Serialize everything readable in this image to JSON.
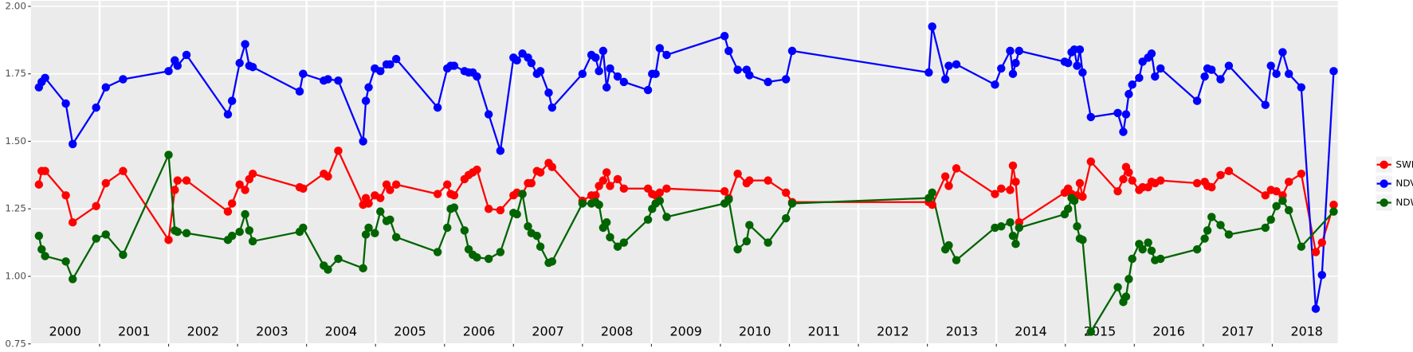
{
  "chart_data": {
    "type": "line",
    "x": [
      2000.12,
      2000.16,
      2000.21,
      2000.51,
      2000.61,
      2000.95,
      2001.09,
      2001.34,
      2002.0,
      2002.09,
      2002.13,
      2002.26,
      2002.86,
      2002.92,
      2003.03,
      2003.11,
      2003.17,
      2003.22,
      2003.9,
      2003.95,
      2004.25,
      2004.31,
      2004.46,
      2004.82,
      2004.86,
      2004.9,
      2004.99,
      2005.07,
      2005.16,
      2005.21,
      2005.3,
      2005.9,
      2006.04,
      2006.09,
      2006.14,
      2006.29,
      2006.35,
      2006.41,
      2006.47,
      2006.64,
      2006.81,
      2007.0,
      2007.05,
      2007.13,
      2007.21,
      2007.26,
      2007.34,
      2007.39,
      2007.51,
      2007.56,
      2008.0,
      2008.13,
      2008.19,
      2008.24,
      2008.3,
      2008.35,
      2008.4,
      2008.51,
      2008.6,
      2008.95,
      2009.01,
      2009.06,
      2009.12,
      2009.22,
      2010.06,
      2010.12,
      2010.25,
      2010.38,
      2010.42,
      2010.69,
      2010.95,
      2011.04,
      2013.02,
      2013.07,
      2013.26,
      2013.31,
      2013.42,
      2013.98,
      2014.07,
      2014.2,
      2014.24,
      2014.28,
      2014.33,
      2014.99,
      2015.04,
      2015.09,
      2015.13,
      2015.17,
      2015.21,
      2015.25,
      2015.37,
      2015.76,
      2015.84,
      2015.88,
      2015.92,
      2015.97,
      2016.07,
      2016.12,
      2016.2,
      2016.25,
      2016.3,
      2016.38,
      2016.91,
      2017.02,
      2017.06,
      2017.12,
      2017.25,
      2017.37,
      2017.9,
      2017.98,
      2018.06,
      2018.15,
      2018.24,
      2018.42,
      2018.63,
      2018.72,
      2018.89
    ],
    "series": [
      {
        "name": "SWIR",
        "color": "#ff0000",
        "values": [
          1.34,
          1.39,
          1.39,
          1.3,
          1.2,
          1.26,
          1.345,
          1.39,
          1.135,
          1.32,
          1.355,
          1.355,
          1.24,
          1.27,
          1.34,
          1.32,
          1.36,
          1.38,
          1.33,
          1.325,
          1.38,
          1.37,
          1.465,
          1.265,
          1.29,
          1.27,
          1.3,
          1.29,
          1.34,
          1.32,
          1.34,
          1.305,
          1.34,
          1.305,
          1.3,
          1.36,
          1.375,
          1.385,
          1.395,
          1.25,
          1.245,
          1.3,
          1.31,
          1.305,
          1.345,
          1.345,
          1.39,
          1.385,
          1.42,
          1.405,
          1.28,
          1.3,
          1.3,
          1.335,
          1.355,
          1.385,
          1.335,
          1.36,
          1.325,
          1.325,
          1.305,
          1.3,
          1.31,
          1.325,
          1.315,
          1.29,
          1.38,
          1.345,
          1.355,
          1.355,
          1.31,
          1.275,
          1.275,
          1.265,
          1.37,
          1.335,
          1.4,
          1.305,
          1.325,
          1.32,
          1.41,
          1.35,
          1.2,
          1.31,
          1.325,
          1.305,
          1.285,
          1.3,
          1.345,
          1.295,
          1.425,
          1.315,
          1.36,
          1.405,
          1.385,
          1.355,
          1.32,
          1.33,
          1.33,
          1.35,
          1.345,
          1.355,
          1.345,
          1.35,
          1.335,
          1.33,
          1.375,
          1.39,
          1.3,
          1.32,
          1.315,
          1.3,
          1.35,
          1.38,
          1.09,
          1.125,
          1.265
        ]
      },
      {
        "name": "NDVI",
        "color": "#0000ff",
        "values": [
          1.7,
          1.72,
          1.735,
          1.64,
          1.49,
          1.625,
          1.7,
          1.73,
          1.76,
          1.8,
          1.78,
          1.82,
          1.6,
          1.65,
          1.79,
          1.86,
          1.78,
          1.775,
          1.685,
          1.75,
          1.725,
          1.73,
          1.725,
          1.5,
          1.65,
          1.7,
          1.77,
          1.76,
          1.785,
          1.785,
          1.805,
          1.625,
          1.77,
          1.78,
          1.78,
          1.76,
          1.755,
          1.755,
          1.74,
          1.6,
          1.465,
          1.81,
          1.8,
          1.825,
          1.81,
          1.79,
          1.75,
          1.76,
          1.68,
          1.625,
          1.75,
          1.82,
          1.81,
          1.76,
          1.835,
          1.7,
          1.77,
          1.74,
          1.72,
          1.69,
          1.75,
          1.75,
          1.845,
          1.82,
          1.89,
          1.835,
          1.765,
          1.765,
          1.745,
          1.72,
          1.73,
          1.835,
          1.755,
          1.925,
          1.73,
          1.78,
          1.785,
          1.71,
          1.77,
          1.835,
          1.75,
          1.79,
          1.835,
          1.795,
          1.79,
          1.83,
          1.84,
          1.78,
          1.84,
          1.755,
          1.59,
          1.605,
          1.535,
          1.6,
          1.675,
          1.71,
          1.735,
          1.795,
          1.81,
          1.825,
          1.74,
          1.77,
          1.65,
          1.74,
          1.77,
          1.765,
          1.73,
          1.78,
          1.635,
          1.78,
          1.75,
          1.83,
          1.75,
          1.7,
          0.88,
          1.005,
          1.76
        ]
      },
      {
        "name": "NDWI",
        "color": "#006400",
        "x": [
          2000.12,
          2000.16,
          2000.21,
          2000.51,
          2000.61,
          2000.95,
          2001.09,
          2001.34,
          2002.0,
          2002.09,
          2002.13,
          2002.26,
          2002.86,
          2002.92,
          2003.03,
          2003.11,
          2003.17,
          2003.22,
          2003.9,
          2003.95,
          2004.25,
          2004.31,
          2004.46,
          2004.82,
          2004.86,
          2004.9,
          2004.99,
          2005.07,
          2005.16,
          2005.21,
          2005.3,
          2005.9,
          2006.04,
          2006.09,
          2006.14,
          2006.29,
          2006.35,
          2006.41,
          2006.47,
          2006.64,
          2006.81,
          2007.0,
          2007.05,
          2007.13,
          2007.21,
          2007.26,
          2007.34,
          2007.39,
          2007.51,
          2007.56,
          2008.0,
          2008.13,
          2008.19,
          2008.24,
          2008.3,
          2008.35,
          2008.4,
          2008.51,
          2008.6,
          2008.95,
          2009.01,
          2009.06,
          2009.12,
          2009.22,
          2010.06,
          2010.12,
          2010.25,
          2010.38,
          2010.42,
          2010.69,
          2010.95,
          2011.04,
          2013.02,
          2013.07,
          2013.26,
          2013.31,
          2013.42,
          2013.98,
          2014.07,
          2014.2,
          2014.24,
          2014.28,
          2014.33,
          2014.99,
          2015.04,
          2015.09,
          2015.13,
          2015.17,
          2015.21,
          2015.25,
          2015.37,
          2015.76,
          2015.84,
          2015.88,
          2015.92,
          2015.97,
          2016.07,
          2016.12,
          2016.2,
          2016.25,
          2016.3,
          2016.38,
          2016.91,
          2017.02,
          2017.06,
          2017.12,
          2017.25,
          2017.37,
          2017.9,
          2017.98,
          2018.06,
          2018.15,
          2018.24,
          2018.42,
          2018.89
        ],
        "values": [
          1.15,
          1.1,
          1.075,
          1.055,
          0.99,
          1.14,
          1.155,
          1.08,
          1.45,
          1.17,
          1.165,
          1.16,
          1.135,
          1.15,
          1.165,
          1.23,
          1.17,
          1.13,
          1.165,
          1.18,
          1.04,
          1.025,
          1.065,
          1.03,
          1.155,
          1.18,
          1.16,
          1.24,
          1.205,
          1.21,
          1.145,
          1.09,
          1.18,
          1.25,
          1.255,
          1.17,
          1.1,
          1.08,
          1.07,
          1.065,
          1.09,
          1.235,
          1.23,
          1.305,
          1.185,
          1.16,
          1.15,
          1.11,
          1.05,
          1.055,
          1.27,
          1.27,
          1.275,
          1.265,
          1.18,
          1.2,
          1.145,
          1.11,
          1.125,
          1.21,
          1.25,
          1.27,
          1.28,
          1.22,
          1.27,
          1.285,
          1.1,
          1.13,
          1.19,
          1.125,
          1.215,
          1.27,
          1.29,
          1.31,
          1.1,
          1.115,
          1.06,
          1.18,
          1.185,
          1.2,
          1.15,
          1.12,
          1.18,
          1.23,
          1.25,
          1.29,
          1.28,
          1.185,
          1.14,
          1.135,
          0.795,
          0.96,
          0.905,
          0.925,
          0.99,
          1.065,
          1.12,
          1.1,
          1.125,
          1.095,
          1.06,
          1.065,
          1.1,
          1.14,
          1.17,
          1.22,
          1.19,
          1.155,
          1.18,
          1.21,
          1.26,
          1.28,
          1.245,
          1.11,
          1.24
        ]
      }
    ],
    "xlim": [
      2000,
      2018.95
    ],
    "ylim": [
      0.75,
      2.0
    ],
    "yticks": [
      {
        "value": 0.75,
        "label": "0.75"
      },
      {
        "value": 1.0,
        "label": "1.00"
      },
      {
        "value": 1.25,
        "label": "1.25"
      },
      {
        "value": 1.5,
        "label": "1.50"
      },
      {
        "value": 1.75,
        "label": "1.75"
      },
      {
        "value": 2.0,
        "label": "2.00"
      }
    ],
    "xticks": [
      {
        "value": 2000.5,
        "label": "2000"
      },
      {
        "value": 2001.5,
        "label": "2001"
      },
      {
        "value": 2002.5,
        "label": "2002"
      },
      {
        "value": 2003.5,
        "label": "2003"
      },
      {
        "value": 2004.5,
        "label": "2004"
      },
      {
        "value": 2005.5,
        "label": "2005"
      },
      {
        "value": 2006.5,
        "label": "2006"
      },
      {
        "value": 2007.5,
        "label": "2007"
      },
      {
        "value": 2008.5,
        "label": "2008"
      },
      {
        "value": 2009.5,
        "label": "2009"
      },
      {
        "value": 2010.5,
        "label": "2010"
      },
      {
        "value": 2011.5,
        "label": "2011"
      },
      {
        "value": 2012.5,
        "label": "2012"
      },
      {
        "value": 2013.5,
        "label": "2013"
      },
      {
        "value": 2014.5,
        "label": "2014"
      },
      {
        "value": 2015.5,
        "label": "2015"
      },
      {
        "value": 2016.5,
        "label": "2016"
      },
      {
        "value": 2017.5,
        "label": "2017"
      },
      {
        "value": 2018.5,
        "label": "2018"
      }
    ],
    "xgrid": [
      2001,
      2002,
      2003,
      2004,
      2005,
      2006,
      2007,
      2008,
      2009,
      2010,
      2011,
      2012,
      2013,
      2014,
      2015,
      2016,
      2017,
      2018
    ],
    "grid": true,
    "legend": "right"
  }
}
